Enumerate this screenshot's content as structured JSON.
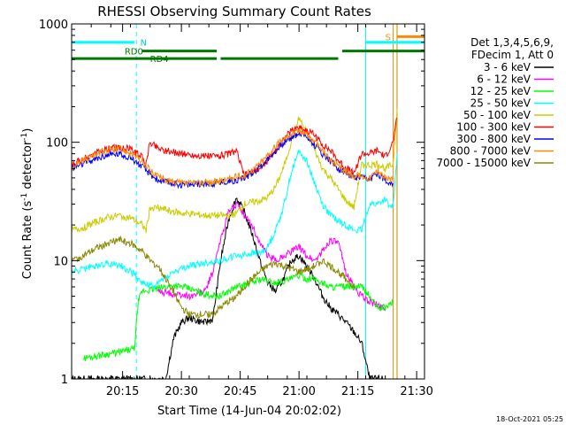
{
  "chart_data": {
    "type": "line",
    "title": "RHESSI Observing Summary Count Rates",
    "xlabel": "Start Time (14-Jun-04 20:02:02)",
    "ylabel_main": "Count Rate (s",
    "ylabel_sup1": "-1",
    "ylabel_mid": " detector",
    "ylabel_sup2": "-1",
    "ylabel_end": ")",
    "yscale": "log",
    "ylim": [
      1,
      1000
    ],
    "xlim_minutes": [
      0,
      90
    ],
    "x_ticks": [
      "20:15",
      "20:30",
      "20:45",
      "21:00",
      "21:15",
      "21:30"
    ],
    "x_tick_minutes": [
      13,
      28,
      43,
      58,
      73,
      88
    ],
    "y_ticks": [
      "1",
      "10",
      "100",
      "1000"
    ],
    "y_tick_values": [
      1,
      10,
      100,
      1000
    ],
    "legend_header": [
      "Det 1,3,4,5,6,9,",
      "FDecim 1, Att 0"
    ],
    "legend_placement": "right",
    "footer_date": "18-Oct-2021 05:25",
    "annotations": [
      {
        "text": "N",
        "color": "#00cccc"
      },
      {
        "text": "RD0",
        "color": "#007700"
      },
      {
        "text": "RD4",
        "color": "#007700"
      },
      {
        "text": "S",
        "color": "#ff8800"
      }
    ],
    "series": [
      {
        "name": "3 - 6 keV",
        "color": "#000000",
        "x": [
          0,
          5,
          10,
          15,
          20,
          22,
          24,
          26,
          28,
          30,
          32,
          34,
          36,
          38,
          40,
          42,
          44,
          46,
          48,
          50,
          52,
          54,
          56,
          58,
          60,
          62,
          64,
          66,
          68,
          70,
          72,
          74,
          76,
          78,
          80
        ],
        "y": [
          1,
          1,
          1,
          1,
          1,
          1,
          1,
          2.2,
          3,
          3.3,
          3.1,
          3,
          3.2,
          10,
          22,
          34,
          26,
          17,
          10,
          6.5,
          5.5,
          7,
          10,
          11,
          9,
          7,
          5,
          4,
          3.5,
          3,
          2.5,
          2,
          1,
          1,
          1
        ]
      },
      {
        "name": "6 - 12 keV",
        "color": "#ff00ff",
        "x": [
          22,
          26,
          30,
          34,
          36,
          38,
          40,
          42,
          44,
          46,
          48,
          50,
          52,
          54,
          56,
          58,
          60,
          62,
          64,
          66,
          68,
          70,
          72,
          74,
          76,
          78,
          80
        ],
        "y": [
          5.5,
          5.2,
          5,
          5.5,
          8,
          15,
          26,
          30,
          24,
          20,
          14,
          11,
          10,
          11,
          12,
          13,
          11,
          10,
          12,
          15,
          14,
          8,
          6,
          5,
          4.5,
          4.2,
          4
        ]
      },
      {
        "name": "12 - 25 keV",
        "color": "#00ff00",
        "x": [
          3,
          8,
          13,
          16,
          17,
          18,
          22,
          26,
          30,
          34,
          38,
          40,
          42,
          44,
          46,
          48,
          52,
          56,
          58,
          60,
          62,
          66,
          70,
          74,
          76,
          78,
          80,
          82
        ],
        "y": [
          1.5,
          1.6,
          1.7,
          1.8,
          4.5,
          5.5,
          5.8,
          6.2,
          5.8,
          5.2,
          5,
          5.5,
          6,
          6.2,
          6.5,
          7,
          6.5,
          7,
          7.5,
          7,
          7,
          6,
          6,
          6,
          5,
          4,
          4,
          4.5
        ]
      },
      {
        "name": "25 - 50 keV",
        "color": "#00ffff",
        "x": [
          0,
          3,
          6,
          9,
          12,
          15,
          18,
          21,
          22,
          26,
          30,
          34,
          38,
          40,
          42,
          44,
          46,
          48,
          50,
          52,
          54,
          56,
          58,
          60,
          62,
          64,
          66,
          68,
          70,
          72,
          74,
          76,
          78,
          80,
          81,
          82,
          83
        ],
        "y": [
          8,
          8.5,
          9,
          9.5,
          9.2,
          8.2,
          6.5,
          6,
          6.5,
          8,
          9,
          9.5,
          10,
          10.5,
          11,
          11.2,
          11.5,
          11.5,
          13,
          18,
          28,
          55,
          85,
          70,
          45,
          30,
          24,
          22,
          20,
          18,
          18,
          30,
          30,
          33,
          28,
          30,
          80
        ]
      },
      {
        "name": "50 - 100 keV",
        "color": "#cccc00",
        "x": [
          0,
          3,
          6,
          9,
          12,
          15,
          18,
          19,
          20,
          22,
          24,
          26,
          28,
          30,
          32,
          34,
          36,
          38,
          40,
          42,
          44,
          46,
          48,
          50,
          52,
          54,
          56,
          58,
          60,
          62,
          64,
          66,
          68,
          70,
          72,
          74,
          76,
          78,
          80,
          82,
          83
        ],
        "y": [
          18,
          19,
          21,
          23,
          24,
          23,
          20,
          18,
          28,
          28,
          27,
          26,
          25,
          25,
          24.5,
          24,
          24,
          24,
          24,
          25,
          30,
          31,
          32,
          34,
          42,
          60,
          100,
          160,
          120,
          85,
          60,
          50,
          40,
          32,
          28,
          65,
          64,
          66,
          60,
          65,
          190
        ]
      },
      {
        "name": "100 - 300 keV",
        "color": "#ff0000",
        "x": [
          0,
          3,
          6,
          9,
          12,
          15,
          18,
          19,
          20,
          22,
          24,
          26,
          28,
          30,
          32,
          34,
          36,
          38,
          40,
          42,
          44,
          46,
          48,
          50,
          52,
          54,
          56,
          58,
          60,
          62,
          64,
          66,
          68,
          70,
          72,
          74,
          76,
          78,
          80,
          82,
          83
        ],
        "y": [
          65,
          72,
          80,
          88,
          90,
          88,
          75,
          65,
          100,
          90,
          85,
          82,
          80,
          78,
          77,
          76,
          76,
          77,
          80,
          85,
          52,
          56,
          60,
          70,
          85,
          105,
          125,
          135,
          125,
          115,
          95,
          85,
          70,
          60,
          55,
          80,
          80,
          85,
          75,
          100,
          160
        ]
      },
      {
        "name": "300 - 800 keV",
        "color": "#0000ff",
        "x": [
          0,
          3,
          6,
          9,
          12,
          15,
          18,
          20,
          22,
          24,
          26,
          28,
          30,
          32,
          34,
          36,
          38,
          40,
          42,
          44,
          46,
          48,
          50,
          52,
          54,
          56,
          58,
          60,
          62,
          64,
          66,
          68,
          70,
          72,
          74,
          76,
          78,
          80,
          82
        ],
        "y": [
          60,
          66,
          72,
          78,
          80,
          75,
          62,
          54,
          48,
          46,
          45,
          44,
          44,
          44,
          45,
          45,
          46,
          47,
          48,
          50,
          55,
          62,
          72,
          85,
          98,
          110,
          120,
          112,
          95,
          80,
          70,
          60,
          55,
          50,
          50,
          48,
          55,
          48,
          45
        ]
      },
      {
        "name": "800 - 7000 keV",
        "color": "#ff8800",
        "x": [
          0,
          3,
          6,
          9,
          12,
          15,
          18,
          20,
          22,
          24,
          26,
          28,
          30,
          32,
          34,
          36,
          38,
          40,
          42,
          44,
          46,
          48,
          50,
          52,
          54,
          56,
          58,
          60,
          62,
          64,
          66,
          68,
          70,
          72,
          74,
          76,
          78,
          80,
          82
        ],
        "y": [
          62,
          70,
          78,
          86,
          88,
          82,
          68,
          58,
          52,
          48,
          46,
          45,
          45,
          45,
          46,
          46,
          47,
          49,
          51,
          52,
          58,
          66,
          78,
          92,
          108,
          118,
          125,
          118,
          100,
          85,
          72,
          62,
          56,
          52,
          52,
          50,
          58,
          50,
          48
        ]
      },
      {
        "name": "7000 - 15000 keV",
        "color": "#888800",
        "x": [
          0,
          3,
          6,
          9,
          12,
          15,
          18,
          20,
          22,
          24,
          26,
          28,
          30,
          32,
          34,
          36,
          38,
          40,
          42,
          44,
          46,
          48,
          50,
          52,
          54,
          56,
          58,
          60,
          62,
          64,
          66,
          68,
          70,
          72
        ],
        "y": [
          10,
          11,
          12.5,
          14,
          15,
          14,
          12,
          10,
          9,
          7,
          5.5,
          4,
          3.5,
          3.5,
          3.5,
          3.5,
          4,
          4.5,
          5,
          6,
          7,
          8,
          9,
          9.5,
          9,
          8.5,
          8,
          8.5,
          9,
          10,
          9,
          8,
          7,
          6
        ]
      }
    ],
    "state_bars": [
      {
        "label": "N",
        "color": "#00ffff",
        "y_level": 700,
        "segments": [
          [
            0,
            16
          ],
          [
            75,
            90
          ]
        ]
      },
      {
        "label": "RD0",
        "color": "#007700",
        "y_level": 590,
        "segments": [
          [
            18,
            37
          ],
          [
            69,
            90
          ]
        ]
      },
      {
        "label": "RD4",
        "color": "#007700",
        "y_level": 510,
        "segments": [
          [
            0,
            37
          ],
          [
            38,
            68
          ]
        ]
      },
      {
        "label": "S",
        "color": "#ff8800",
        "y_level": 780,
        "segments": [
          [
            83,
            90
          ]
        ]
      }
    ],
    "vlines": [
      {
        "x": 16.5,
        "color": "#00ffff",
        "dashed": true
      },
      {
        "x": 75,
        "color": "#00ffff",
        "dashed": false
      },
      {
        "x": 82,
        "color": "#ff8800",
        "dashed": false
      },
      {
        "x": 83,
        "color": "#cc8800",
        "dashed": false
      },
      {
        "x": 90,
        "color": "#ff8800",
        "dashed": true
      }
    ]
  }
}
